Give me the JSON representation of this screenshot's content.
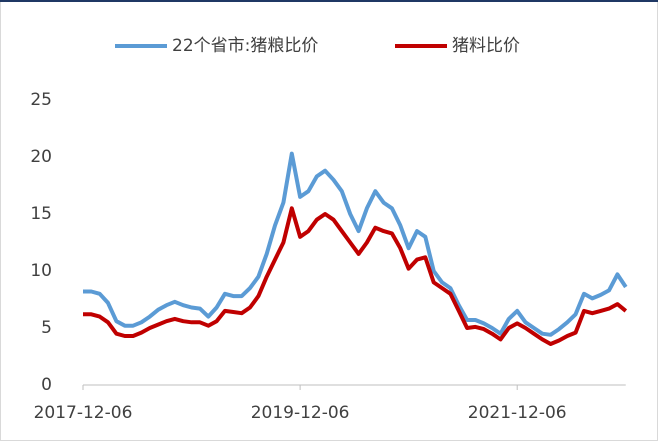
{
  "chart_data": {
    "type": "line",
    "categories": [
      "2017-12-06",
      null,
      null,
      null,
      null,
      null,
      null,
      null,
      null,
      null,
      null,
      null,
      null,
      null,
      null,
      null,
      null,
      null,
      null,
      null,
      null,
      null,
      null,
      null,
      null,
      null,
      "2019-12-06",
      null,
      null,
      null,
      null,
      null,
      null,
      null,
      null,
      null,
      null,
      null,
      null,
      null,
      null,
      null,
      null,
      null,
      null,
      null,
      null,
      null,
      null,
      null,
      null,
      null,
      "2021-12-06",
      null,
      null,
      null,
      null,
      null,
      null,
      null,
      null,
      null,
      null,
      null,
      null,
      null
    ],
    "series": [
      {
        "name": "22个省市:猪粮比价",
        "color": "#5b9bd5",
        "values": [
          8.2,
          8.2,
          8.0,
          7.2,
          5.6,
          5.2,
          5.2,
          5.5,
          6.0,
          6.6,
          7.0,
          7.3,
          7.0,
          6.8,
          6.7,
          6.0,
          6.8,
          8.0,
          7.8,
          7.8,
          8.5,
          9.5,
          11.5,
          14.0,
          16.0,
          20.3,
          16.5,
          17.0,
          18.3,
          18.8,
          18.0,
          17.0,
          15.0,
          13.5,
          15.5,
          17.0,
          16.0,
          15.5,
          14.0,
          12.0,
          13.5,
          13.0,
          10.0,
          9.0,
          8.5,
          7.0,
          5.7,
          5.7,
          5.4,
          5.0,
          4.5,
          5.8,
          6.5,
          5.5,
          5.0,
          4.5,
          4.4,
          4.9,
          5.5,
          6.2,
          8.0,
          7.6,
          7.9,
          8.3,
          9.7,
          8.6
        ]
      },
      {
        "name": "猪料比价",
        "color": "#c00000",
        "values": [
          6.2,
          6.2,
          6.0,
          5.5,
          4.5,
          4.3,
          4.3,
          4.6,
          5.0,
          5.3,
          5.6,
          5.8,
          5.6,
          5.5,
          5.5,
          5.2,
          5.6,
          6.5,
          6.4,
          6.3,
          6.8,
          7.8,
          9.5,
          11.0,
          12.5,
          15.5,
          13.0,
          13.5,
          14.5,
          15.0,
          14.5,
          13.5,
          12.5,
          11.5,
          12.5,
          13.8,
          13.5,
          13.3,
          12.0,
          10.2,
          11.0,
          11.2,
          9.0,
          8.5,
          8.0,
          6.5,
          5.0,
          5.1,
          4.9,
          4.5,
          4.0,
          5.0,
          5.4,
          5.0,
          4.5,
          4.0,
          3.6,
          3.9,
          4.3,
          4.6,
          6.5,
          6.3,
          6.5,
          6.7,
          7.1,
          6.5
        ]
      }
    ],
    "ylim": [
      0,
      25
    ],
    "yticks": [
      0,
      5,
      10,
      15,
      20,
      25
    ],
    "grid": false,
    "legend": "top"
  }
}
